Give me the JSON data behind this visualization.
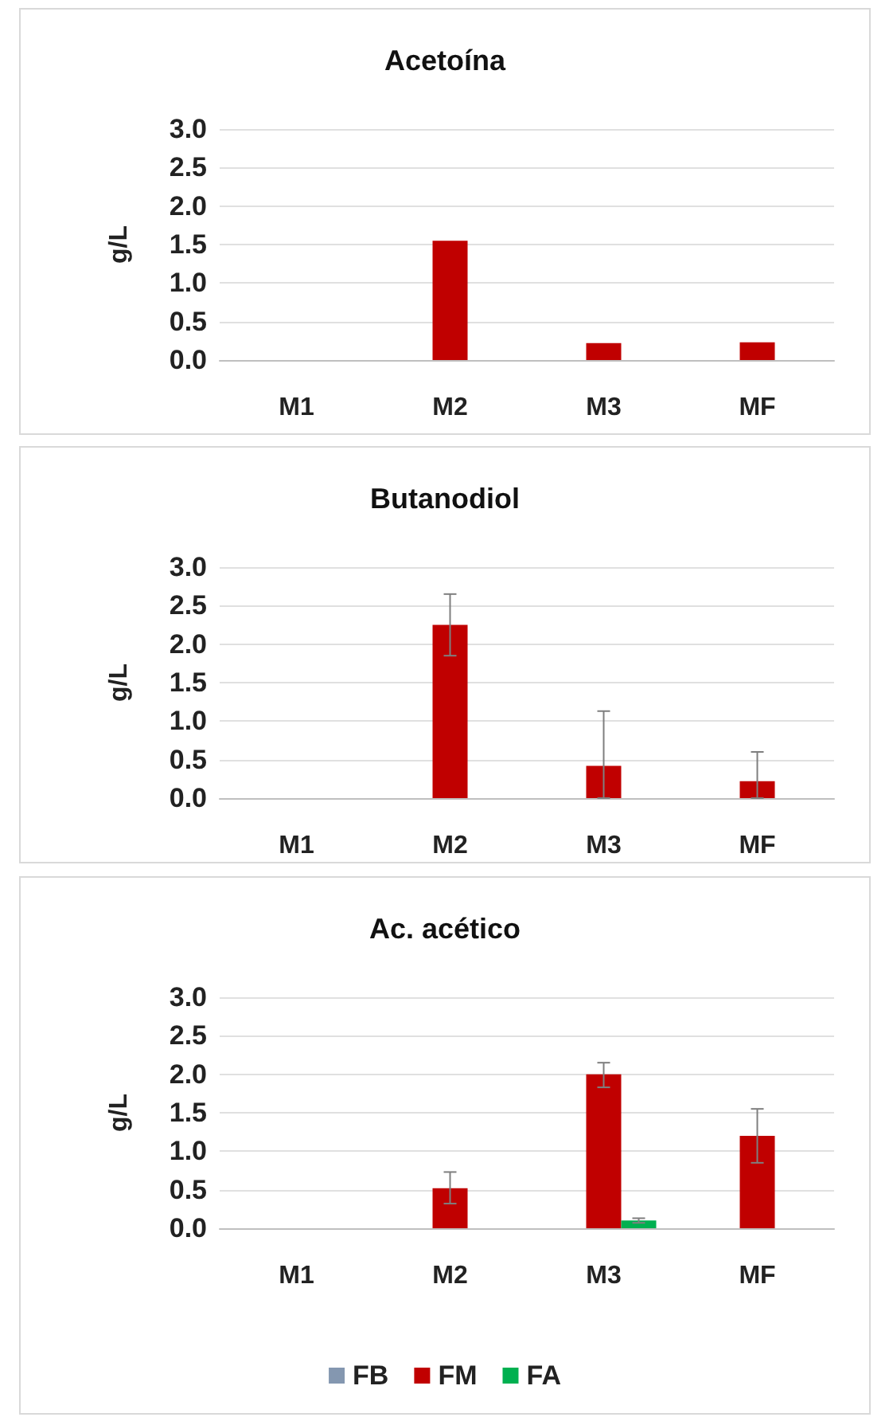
{
  "chart_data": [
    {
      "type": "bar",
      "title": "Acetoína",
      "ylabel": "g/L",
      "categories": [
        "M1",
        "M2",
        "M3",
        "MF"
      ],
      "series": [
        {
          "color": "#c00000",
          "values": [
            null,
            1.55,
            0.22,
            0.23
          ]
        }
      ],
      "ylim": [
        0,
        3
      ],
      "yticks": [
        {
          "value": 0,
          "label": "0.0"
        },
        {
          "value": 0.5,
          "label": "0.5"
        },
        {
          "value": 1,
          "label": "1.0"
        },
        {
          "value": 1.5,
          "label": "1.5"
        },
        {
          "value": 2,
          "label": "2.0"
        },
        {
          "value": 2.5,
          "label": "2.5"
        },
        {
          "value": 3,
          "label": "3.0"
        }
      ],
      "grid": "y"
    },
    {
      "type": "bar",
      "title": "Butanodiol",
      "ylabel": "g/L",
      "categories": [
        "M1",
        "M2",
        "M3",
        "MF"
      ],
      "series": [
        {
          "color": "#c00000",
          "values": [
            null,
            2.25,
            0.42,
            0.22
          ],
          "errors": [
            null,
            [
              1.85,
              2.65
            ],
            [
              0,
              1.13
            ],
            [
              0,
              0.6
            ]
          ]
        }
      ],
      "ylim": [
        0,
        3
      ],
      "yticks": [
        {
          "value": 0,
          "label": "0.0"
        },
        {
          "value": 0.5,
          "label": "0.5"
        },
        {
          "value": 1,
          "label": "1.0"
        },
        {
          "value": 1.5,
          "label": "1.5"
        },
        {
          "value": 2,
          "label": "2.0"
        },
        {
          "value": 2.5,
          "label": "2.5"
        },
        {
          "value": 3,
          "label": "3.0"
        }
      ],
      "grid": "y"
    },
    {
      "type": "bar",
      "title": "Ac. acético",
      "ylabel": "g/L",
      "categories": [
        "M1",
        "M2",
        "M3",
        "MF"
      ],
      "series": [
        {
          "name": "FB",
          "color": "#8497b0",
          "values": [
            null,
            null,
            null,
            null
          ]
        },
        {
          "name": "FM",
          "color": "#c00000",
          "values": [
            null,
            0.52,
            2.0,
            1.2
          ],
          "errors": [
            null,
            [
              0.32,
              0.73
            ],
            [
              1.83,
              2.15
            ],
            [
              0.85,
              1.55
            ]
          ]
        },
        {
          "name": "FA",
          "color": "#00b050",
          "values": [
            null,
            null,
            0.1,
            null
          ],
          "errors": [
            null,
            null,
            [
              0.07,
              0.13
            ],
            null
          ]
        }
      ],
      "ylim": [
        0,
        3
      ],
      "yticks": [
        {
          "value": 0,
          "label": "0.0"
        },
        {
          "value": 0.5,
          "label": "0.5"
        },
        {
          "value": 1,
          "label": "1.0"
        },
        {
          "value": 1.5,
          "label": "1.5"
        },
        {
          "value": 2,
          "label": "2.0"
        },
        {
          "value": 2.5,
          "label": "2.5"
        },
        {
          "value": 3,
          "label": "3.0"
        }
      ],
      "grid": "y",
      "legend": "bottom"
    }
  ]
}
